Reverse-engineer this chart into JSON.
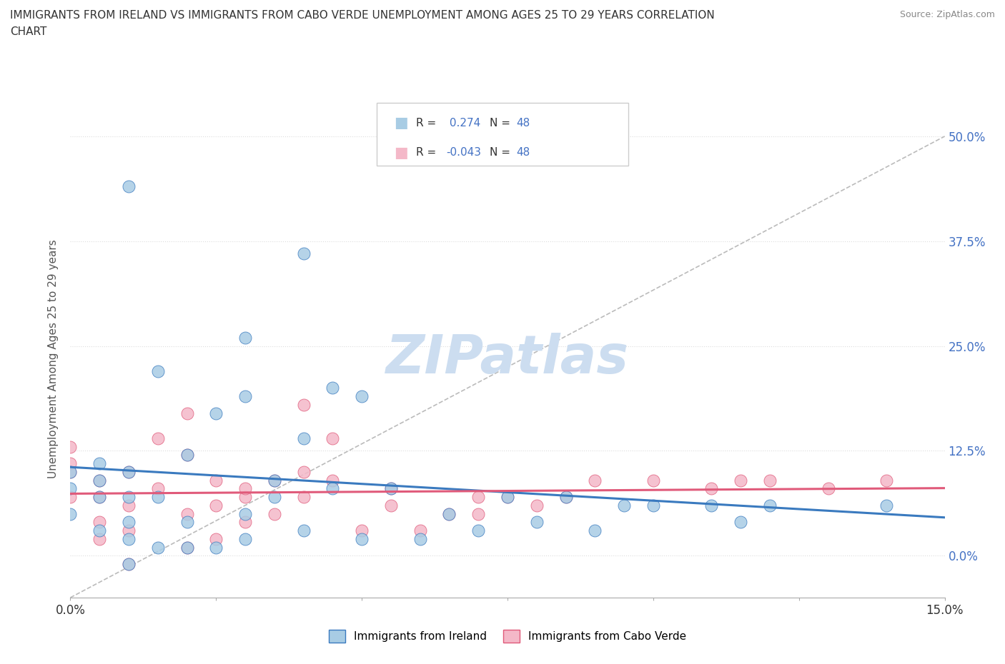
{
  "title_line1": "IMMIGRANTS FROM IRELAND VS IMMIGRANTS FROM CABO VERDE UNEMPLOYMENT AMONG AGES 25 TO 29 YEARS CORRELATION",
  "title_line2": "CHART",
  "source": "Source: ZipAtlas.com",
  "ylabel": "Unemployment Among Ages 25 to 29 years",
  "r_ireland": 0.274,
  "n_ireland": 48,
  "r_caboverde": -0.043,
  "n_caboverde": 48,
  "color_ireland": "#a8cce4",
  "color_caboverde": "#f4b8c8",
  "color_ireland_line": "#3a7abf",
  "color_caboverde_line": "#e05a7a",
  "color_ref_line": "#bbbbbb",
  "xmin": 0.0,
  "xmax": 0.15,
  "ymin": -0.05,
  "ymax": 0.52,
  "yticks": [
    0.0,
    0.125,
    0.25,
    0.375,
    0.5
  ],
  "ytick_labels": [
    "0.0%",
    "12.5%",
    "25.0%",
    "37.5%",
    "50.0%"
  ],
  "xtick_positions": [
    0.0,
    0.025,
    0.05,
    0.075,
    0.1,
    0.125,
    0.15
  ],
  "ireland_x": [
    0.0,
    0.0,
    0.0,
    0.005,
    0.005,
    0.005,
    0.005,
    0.01,
    0.01,
    0.01,
    0.01,
    0.01,
    0.01,
    0.015,
    0.015,
    0.015,
    0.02,
    0.02,
    0.02,
    0.025,
    0.025,
    0.03,
    0.03,
    0.03,
    0.03,
    0.035,
    0.035,
    0.04,
    0.04,
    0.04,
    0.045,
    0.045,
    0.05,
    0.05,
    0.055,
    0.06,
    0.065,
    0.07,
    0.075,
    0.08,
    0.085,
    0.09,
    0.095,
    0.1,
    0.11,
    0.115,
    0.12,
    0.14
  ],
  "ireland_y": [
    0.05,
    0.08,
    0.1,
    0.03,
    0.07,
    0.09,
    0.11,
    -0.01,
    0.02,
    0.04,
    0.07,
    0.1,
    0.44,
    0.01,
    0.07,
    0.22,
    0.01,
    0.04,
    0.12,
    0.01,
    0.17,
    0.02,
    0.05,
    0.19,
    0.26,
    0.07,
    0.09,
    0.03,
    0.14,
    0.36,
    0.08,
    0.2,
    0.02,
    0.19,
    0.08,
    0.02,
    0.05,
    0.03,
    0.07,
    0.04,
    0.07,
    0.03,
    0.06,
    0.06,
    0.06,
    0.04,
    0.06,
    0.06
  ],
  "caboverde_x": [
    0.0,
    0.0,
    0.0,
    0.0,
    0.005,
    0.005,
    0.005,
    0.005,
    0.01,
    0.01,
    0.01,
    0.01,
    0.015,
    0.015,
    0.02,
    0.02,
    0.02,
    0.02,
    0.025,
    0.025,
    0.025,
    0.03,
    0.03,
    0.03,
    0.035,
    0.035,
    0.04,
    0.04,
    0.04,
    0.045,
    0.045,
    0.05,
    0.055,
    0.055,
    0.06,
    0.065,
    0.07,
    0.07,
    0.075,
    0.08,
    0.085,
    0.09,
    0.1,
    0.11,
    0.115,
    0.12,
    0.13,
    0.14
  ],
  "caboverde_y": [
    0.07,
    0.1,
    0.11,
    0.13,
    0.02,
    0.04,
    0.07,
    0.09,
    -0.01,
    0.03,
    0.06,
    0.1,
    0.08,
    0.14,
    0.01,
    0.05,
    0.12,
    0.17,
    0.02,
    0.06,
    0.09,
    0.04,
    0.07,
    0.08,
    0.05,
    0.09,
    0.07,
    0.1,
    0.18,
    0.09,
    0.14,
    0.03,
    0.06,
    0.08,
    0.03,
    0.05,
    0.05,
    0.07,
    0.07,
    0.06,
    0.07,
    0.09,
    0.09,
    0.08,
    0.09,
    0.09,
    0.08,
    0.09
  ],
  "watermark": "ZIPatlas",
  "watermark_color": "#ccddf0",
  "bg_color": "#ffffff",
  "grid_color": "#dddddd"
}
